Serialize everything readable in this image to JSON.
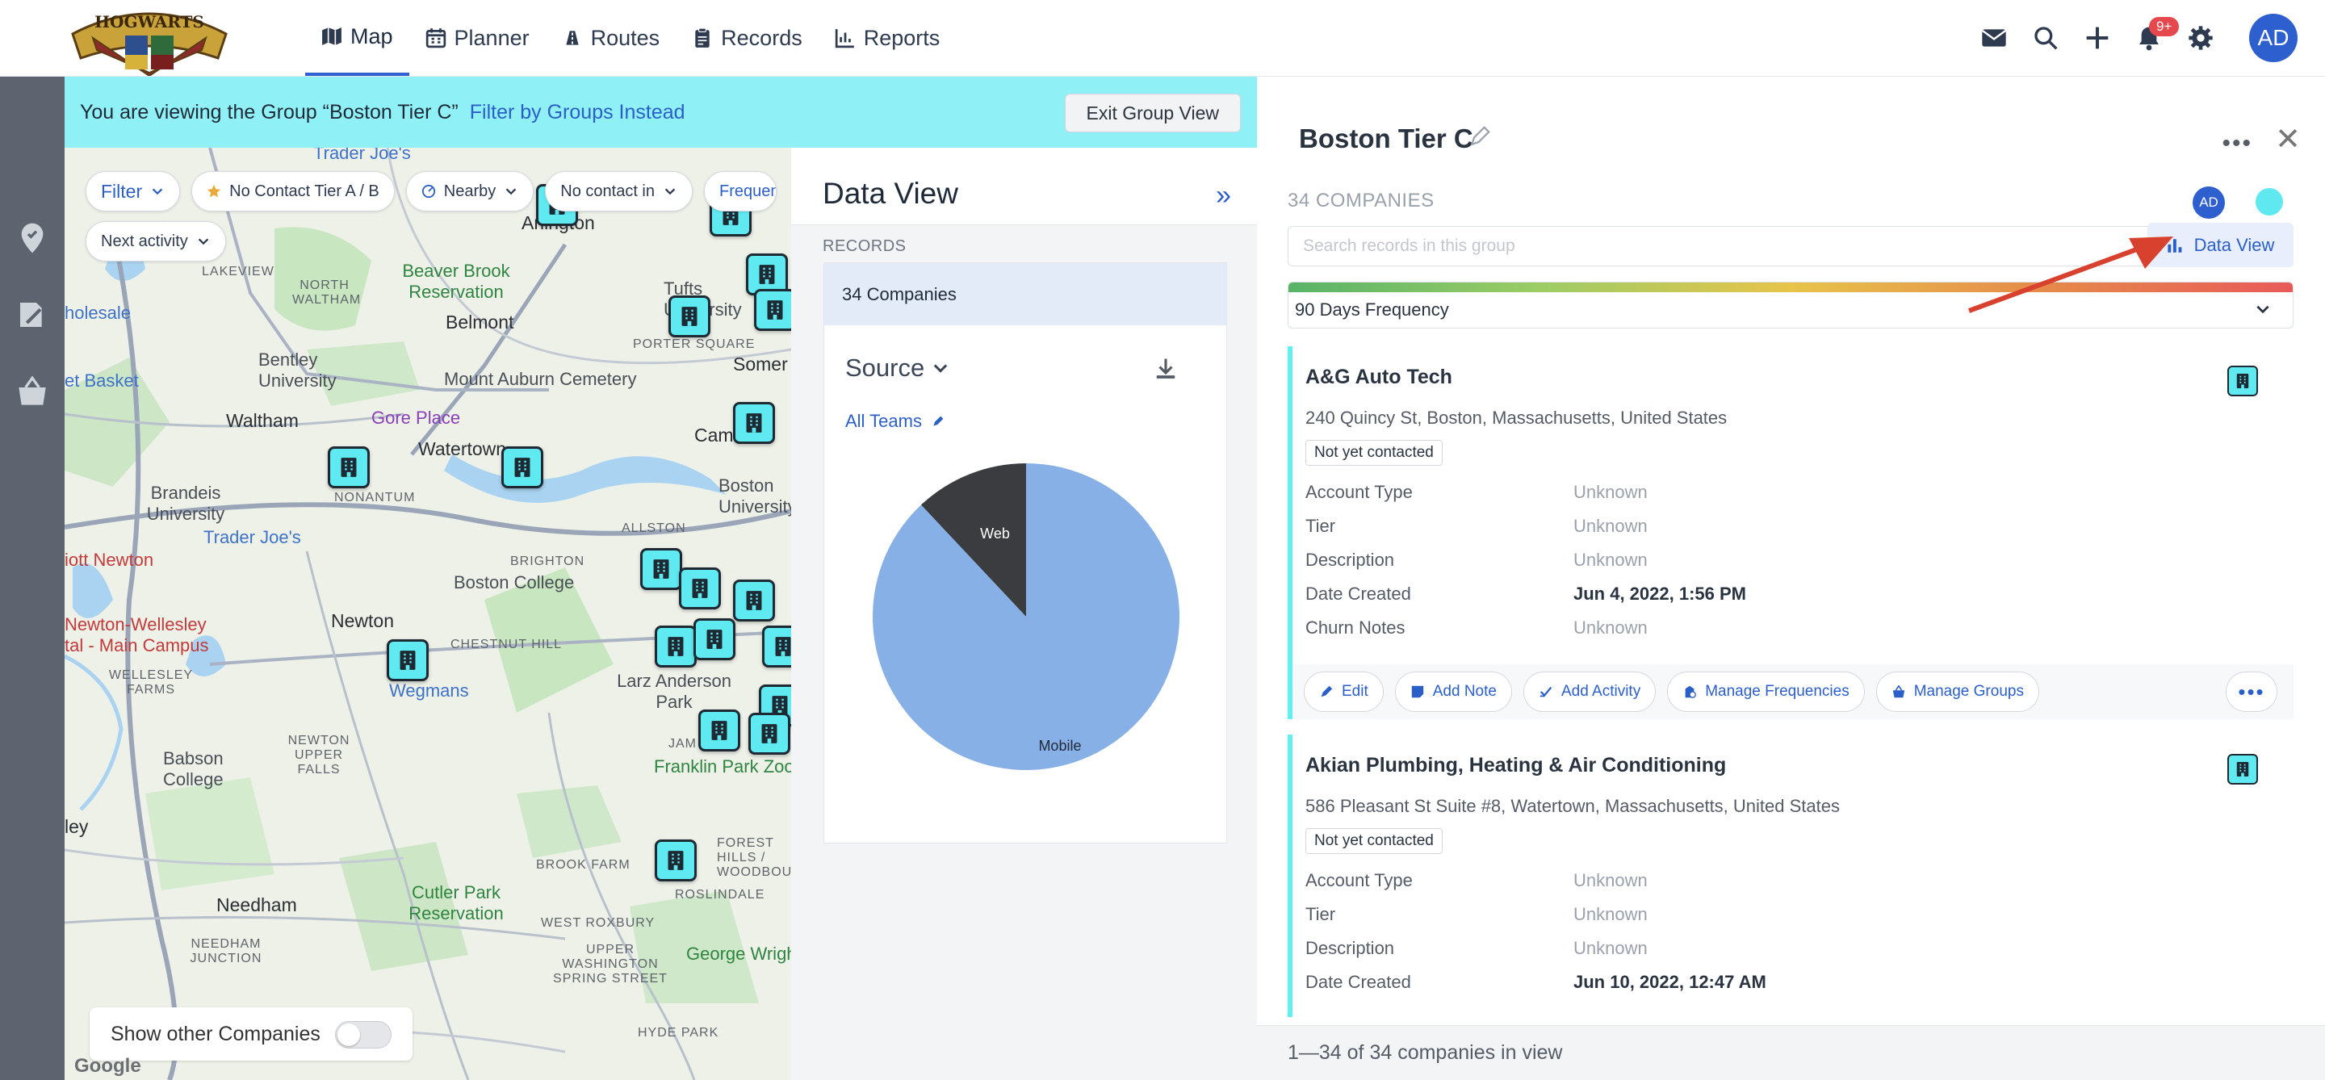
{
  "app": {
    "logo_text": "HOGWARTS"
  },
  "nav": {
    "tabs": [
      {
        "label": "Map",
        "icon": "map-icon"
      },
      {
        "label": "Planner",
        "icon": "calendar-icon"
      },
      {
        "label": "Routes",
        "icon": "routes-icon"
      },
      {
        "label": "Records",
        "icon": "clipboard-icon"
      },
      {
        "label": "Reports",
        "icon": "chart-icon"
      }
    ],
    "notification_count": "9+",
    "avatar_initials": "AD"
  },
  "banner": {
    "text": "You are viewing the Group “Boston Tier C”",
    "link": "Filter by Groups Instead",
    "exit_button": "Exit Group View"
  },
  "map": {
    "filters": {
      "filter": "Filter",
      "contact_tier": "No Contact Tier A / B",
      "nearby": "Nearby",
      "no_contact_in": "No contact in",
      "frequency": "Frequen",
      "next_activity": "Next activity"
    },
    "show_other_label": "Show other Companies",
    "google": "Google",
    "labels": {
      "traderjoes_top": "Trader Joe's",
      "arlington": "Arlington",
      "lakeview": "LAKEVIEW",
      "north_waltham": "NORTH WALTHAM",
      "beaver_brook": "Beaver Brook Reservation",
      "belmont": "Belmont",
      "tufts": "Tufts University",
      "porter": "PORTER SQUARE",
      "somerville": "Somer",
      "wholesale": "holesale",
      "bentley": "Bentley University",
      "basket": "et Basket",
      "mount_auburn": "Mount Auburn Cemetery",
      "waltham": "Waltham",
      "gore": "Gore Place",
      "watertown": "Watertown",
      "cambridge": "Camb",
      "brandeis": "Brandeis University",
      "nonantum": "NONANTUM",
      "traderjoes": "Trader Joe's",
      "boston_univ": "Boston University",
      "allston": "ALLSTON",
      "elliott": "iott Newton",
      "brighton": "BRIGHTON",
      "boston_college": "Boston College",
      "newton": "Newton",
      "newton_wellesley": "Newton-Wellesley tal - Main Campus",
      "chestnut": "CHESTNUT HILL",
      "wegmans": "Wegmans",
      "larz": "Larz Anderson Park",
      "wellesley_farms": "WELLESLEY FARMS",
      "newton_upper": "NEWTON UPPER FALLS",
      "babson": "Babson College",
      "franklin": "Franklin Park Zoo",
      "ley": "ley",
      "forest_hills": "FOREST HILLS / WOODBOURNE",
      "brook_farm": "BROOK FARM",
      "roslindale": "ROSLINDALE",
      "cutler": "Cutler Park Reservation",
      "needham": "Needham",
      "west_roxbury": "WEST ROXBURY",
      "needham_junction": "NEEDHAM JUNCTION",
      "upper_washington": "UPPER WASHINGTON SPRING STREET",
      "george_wright": "George Wright",
      "hyde_park": "HYDE PARK",
      "jam": "JAM"
    }
  },
  "data_view": {
    "title": "Data View",
    "collapse": "»",
    "records_label": "RECORDS",
    "companies": "34 Companies",
    "source": "Source",
    "teams": "All Teams",
    "chart_data": {
      "type": "pie",
      "categories": [
        "Web",
        "Mobile"
      ],
      "values": [
        12,
        88
      ],
      "colors": [
        "#3a3c40",
        "#87b0e6"
      ]
    }
  },
  "group": {
    "title": "Boston Tier C",
    "count": "34 COMPANIES",
    "avatar_initials": "AD",
    "search_placeholder": "Search records in this group",
    "data_view_button": "Data View",
    "frequency": "90 Days Frequency",
    "companies": [
      {
        "name": "A&G Auto Tech",
        "address": "240 Quincy St, Boston, Massachusetts, United States",
        "status": "Not yet contacted",
        "fields": [
          {
            "key": "Account Type",
            "value": "Unknown"
          },
          {
            "key": "Tier",
            "value": "Unknown"
          },
          {
            "key": "Description",
            "value": "Unknown"
          },
          {
            "key": "Date Created",
            "value": "Jun 4, 2022, 1:56 PM"
          },
          {
            "key": "Churn Notes",
            "value": "Unknown"
          }
        ]
      },
      {
        "name": "Akian Plumbing, Heating & Air Conditioning",
        "address": "586 Pleasant St Suite #8, Watertown, Massachusetts, United States",
        "status": "Not yet contacted",
        "fields": [
          {
            "key": "Account Type",
            "value": "Unknown"
          },
          {
            "key": "Tier",
            "value": "Unknown"
          },
          {
            "key": "Description",
            "value": "Unknown"
          },
          {
            "key": "Date Created",
            "value": "Jun 10, 2022, 12:47 AM"
          }
        ]
      }
    ],
    "actions": {
      "edit": "Edit",
      "add_note": "Add Note",
      "add_activity": "Add Activity",
      "manage_frequencies": "Manage Frequencies",
      "manage_groups": "Manage Groups",
      "more": "•••"
    },
    "footer": "1—34 of 34 companies in view"
  }
}
